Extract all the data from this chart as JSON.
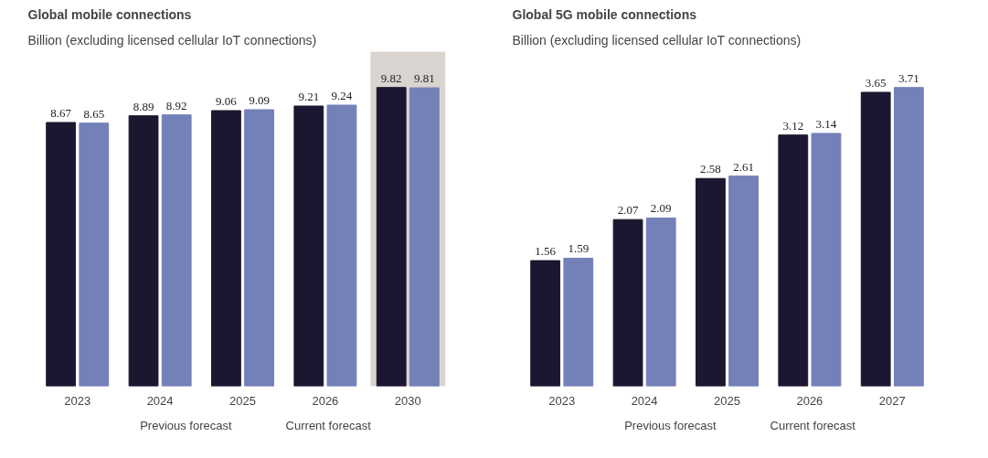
{
  "chart_data": [
    {
      "type": "bar",
      "title": "Global mobile connections",
      "subtitle": "Billion (excluding licensed cellular IoT connections)",
      "categories": [
        "2023",
        "2024",
        "2025",
        "2026",
        "2030"
      ],
      "series": [
        {
          "name": "Previous forecast",
          "color": "#1c1730",
          "values": [
            8.67,
            8.89,
            9.06,
            9.21,
            9.82
          ]
        },
        {
          "name": "Current forecast",
          "color": "#7480b8",
          "values": [
            8.65,
            8.92,
            9.09,
            9.24,
            9.81
          ]
        }
      ],
      "tick_labels": "x",
      "data_labels": true,
      "legend": "bottom",
      "bands": [
        {
          "axis": "x",
          "from": "2030",
          "to": "2030",
          "color": "#d9d4d0"
        }
      ]
    },
    {
      "type": "bar",
      "title": "Global 5G mobile connections",
      "subtitle": "Billion (excluding licensed cellular IoT connections)",
      "categories": [
        "2023",
        "2024",
        "2025",
        "2026",
        "2027"
      ],
      "series": [
        {
          "name": "Previous forecast",
          "color": "#1c1730",
          "values": [
            1.56,
            2.07,
            2.58,
            3.12,
            3.65
          ]
        },
        {
          "name": "Current forecast",
          "color": "#7480b8",
          "values": [
            1.59,
            2.09,
            2.61,
            3.14,
            3.71
          ]
        }
      ],
      "tick_labels": "x",
      "data_labels": true,
      "legend": "bottom"
    }
  ]
}
